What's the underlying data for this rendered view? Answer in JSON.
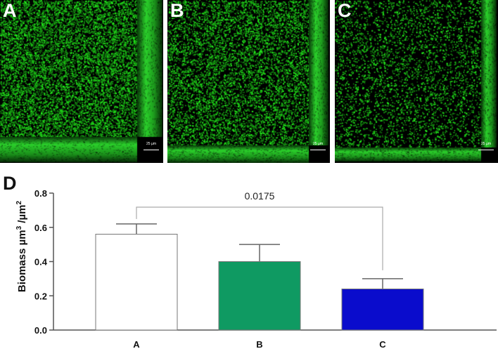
{
  "panels": [
    {
      "label": "A",
      "scale_bar": "25 µm",
      "density": 1.0
    },
    {
      "label": "B",
      "scale_bar": "25 µm",
      "density": 0.8
    },
    {
      "label": "C",
      "scale_bar": "25 µm",
      "density": 0.45
    }
  ],
  "panel_d_label": "D",
  "colors": {
    "signal_green": "#33dd33",
    "bar_A": "#ffffff",
    "bar_B": "#0f9a62",
    "bar_C": "#0a0ccc"
  },
  "chart_data": {
    "type": "bar",
    "categories": [
      "A",
      "B",
      "C"
    ],
    "values": [
      0.56,
      0.4,
      0.24
    ],
    "error_upper": [
      0.62,
      0.5,
      0.3
    ],
    "ylabel": "Biomass µm³ /µm²",
    "ylabel_parts": {
      "base": "Biomass µm",
      "sup1": "3",
      "mid": " /µm",
      "sup2": "2"
    },
    "ylim": [
      0,
      0.8
    ],
    "yticks": [
      "0.0",
      "0.2",
      "0.4",
      "0.6",
      "0.8"
    ],
    "annotation": "0.0175",
    "annotation_between": [
      "A",
      "C"
    ],
    "grid": false
  }
}
